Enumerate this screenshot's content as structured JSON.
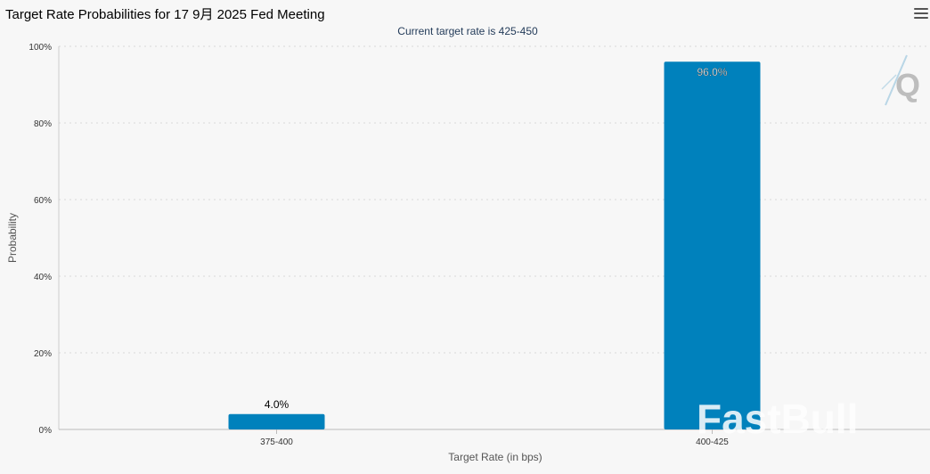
{
  "header": {
    "title": "Target Rate Probabilities for 17 9月 2025 Fed Meeting",
    "menu_icon": "hamburger-menu-icon"
  },
  "chart_data": {
    "type": "bar",
    "title": "Target Rate Probabilities for 17 9月 2025 Fed Meeting",
    "subtitle": "Current target rate is 425-450",
    "xlabel": "Target Rate (in bps)",
    "ylabel": "Probability",
    "categories": [
      "375-400",
      "400-425"
    ],
    "values": [
      4.0,
      96.0
    ],
    "data_labels": [
      "4.0%",
      "96.0%"
    ],
    "ylim": [
      0,
      100
    ],
    "yticks": [
      0,
      20,
      40,
      60,
      80,
      100
    ],
    "ytick_labels": [
      "0%",
      "20%",
      "40%",
      "60%",
      "80%",
      "100%"
    ],
    "grid": true,
    "bar_color": "#0081bc"
  },
  "watermarks": {
    "corner_logo": "Q",
    "brand": "FastBull"
  }
}
